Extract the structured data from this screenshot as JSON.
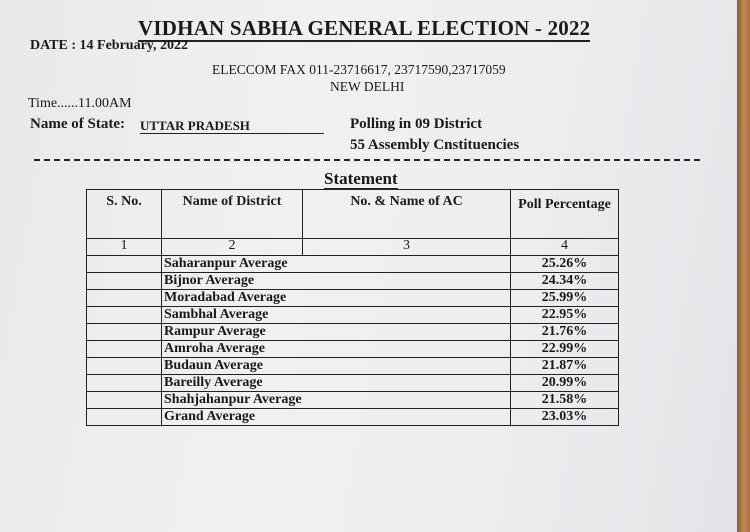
{
  "header": {
    "title": "VIDHAN SABHA GENERAL ELECTION - 2022",
    "date": "DATE : 14 February, 2022",
    "fax": "ELECCOM FAX 011-23716617, 23717590,23717059",
    "city": "NEW DELHI",
    "time": "Time......11.00AM",
    "state_label": "Name of State:",
    "state_value": "UTTAR PRADESH",
    "polling": "Polling in 09 District",
    "constituencies": "55 Assembly Cnstituencies"
  },
  "statement": "Statement",
  "table": {
    "headers": [
      "S. No.",
      "Name of District",
      "No. & Name of AC",
      "Poll Percentage"
    ],
    "column_numbers": [
      "1",
      "2",
      "3",
      "4"
    ],
    "rows": [
      {
        "district": "Saharanpur Average",
        "percentage": "25.26%"
      },
      {
        "district": "Bijnor Average",
        "percentage": "24.34%"
      },
      {
        "district": "Moradabad Average",
        "percentage": "25.99%"
      },
      {
        "district": "Sambhal Average",
        "percentage": "22.95%"
      },
      {
        "district": "Rampur Average",
        "percentage": "21.76%"
      },
      {
        "district": "Amroha Average",
        "percentage": "22.99%"
      },
      {
        "district": "Budaun Average",
        "percentage": "21.87%"
      },
      {
        "district": "Bareilly Average",
        "percentage": "20.99%"
      },
      {
        "district": "Shahjahanpur Average",
        "percentage": "21.58%"
      },
      {
        "district": "Grand Average",
        "percentage": "23.03%"
      }
    ]
  }
}
